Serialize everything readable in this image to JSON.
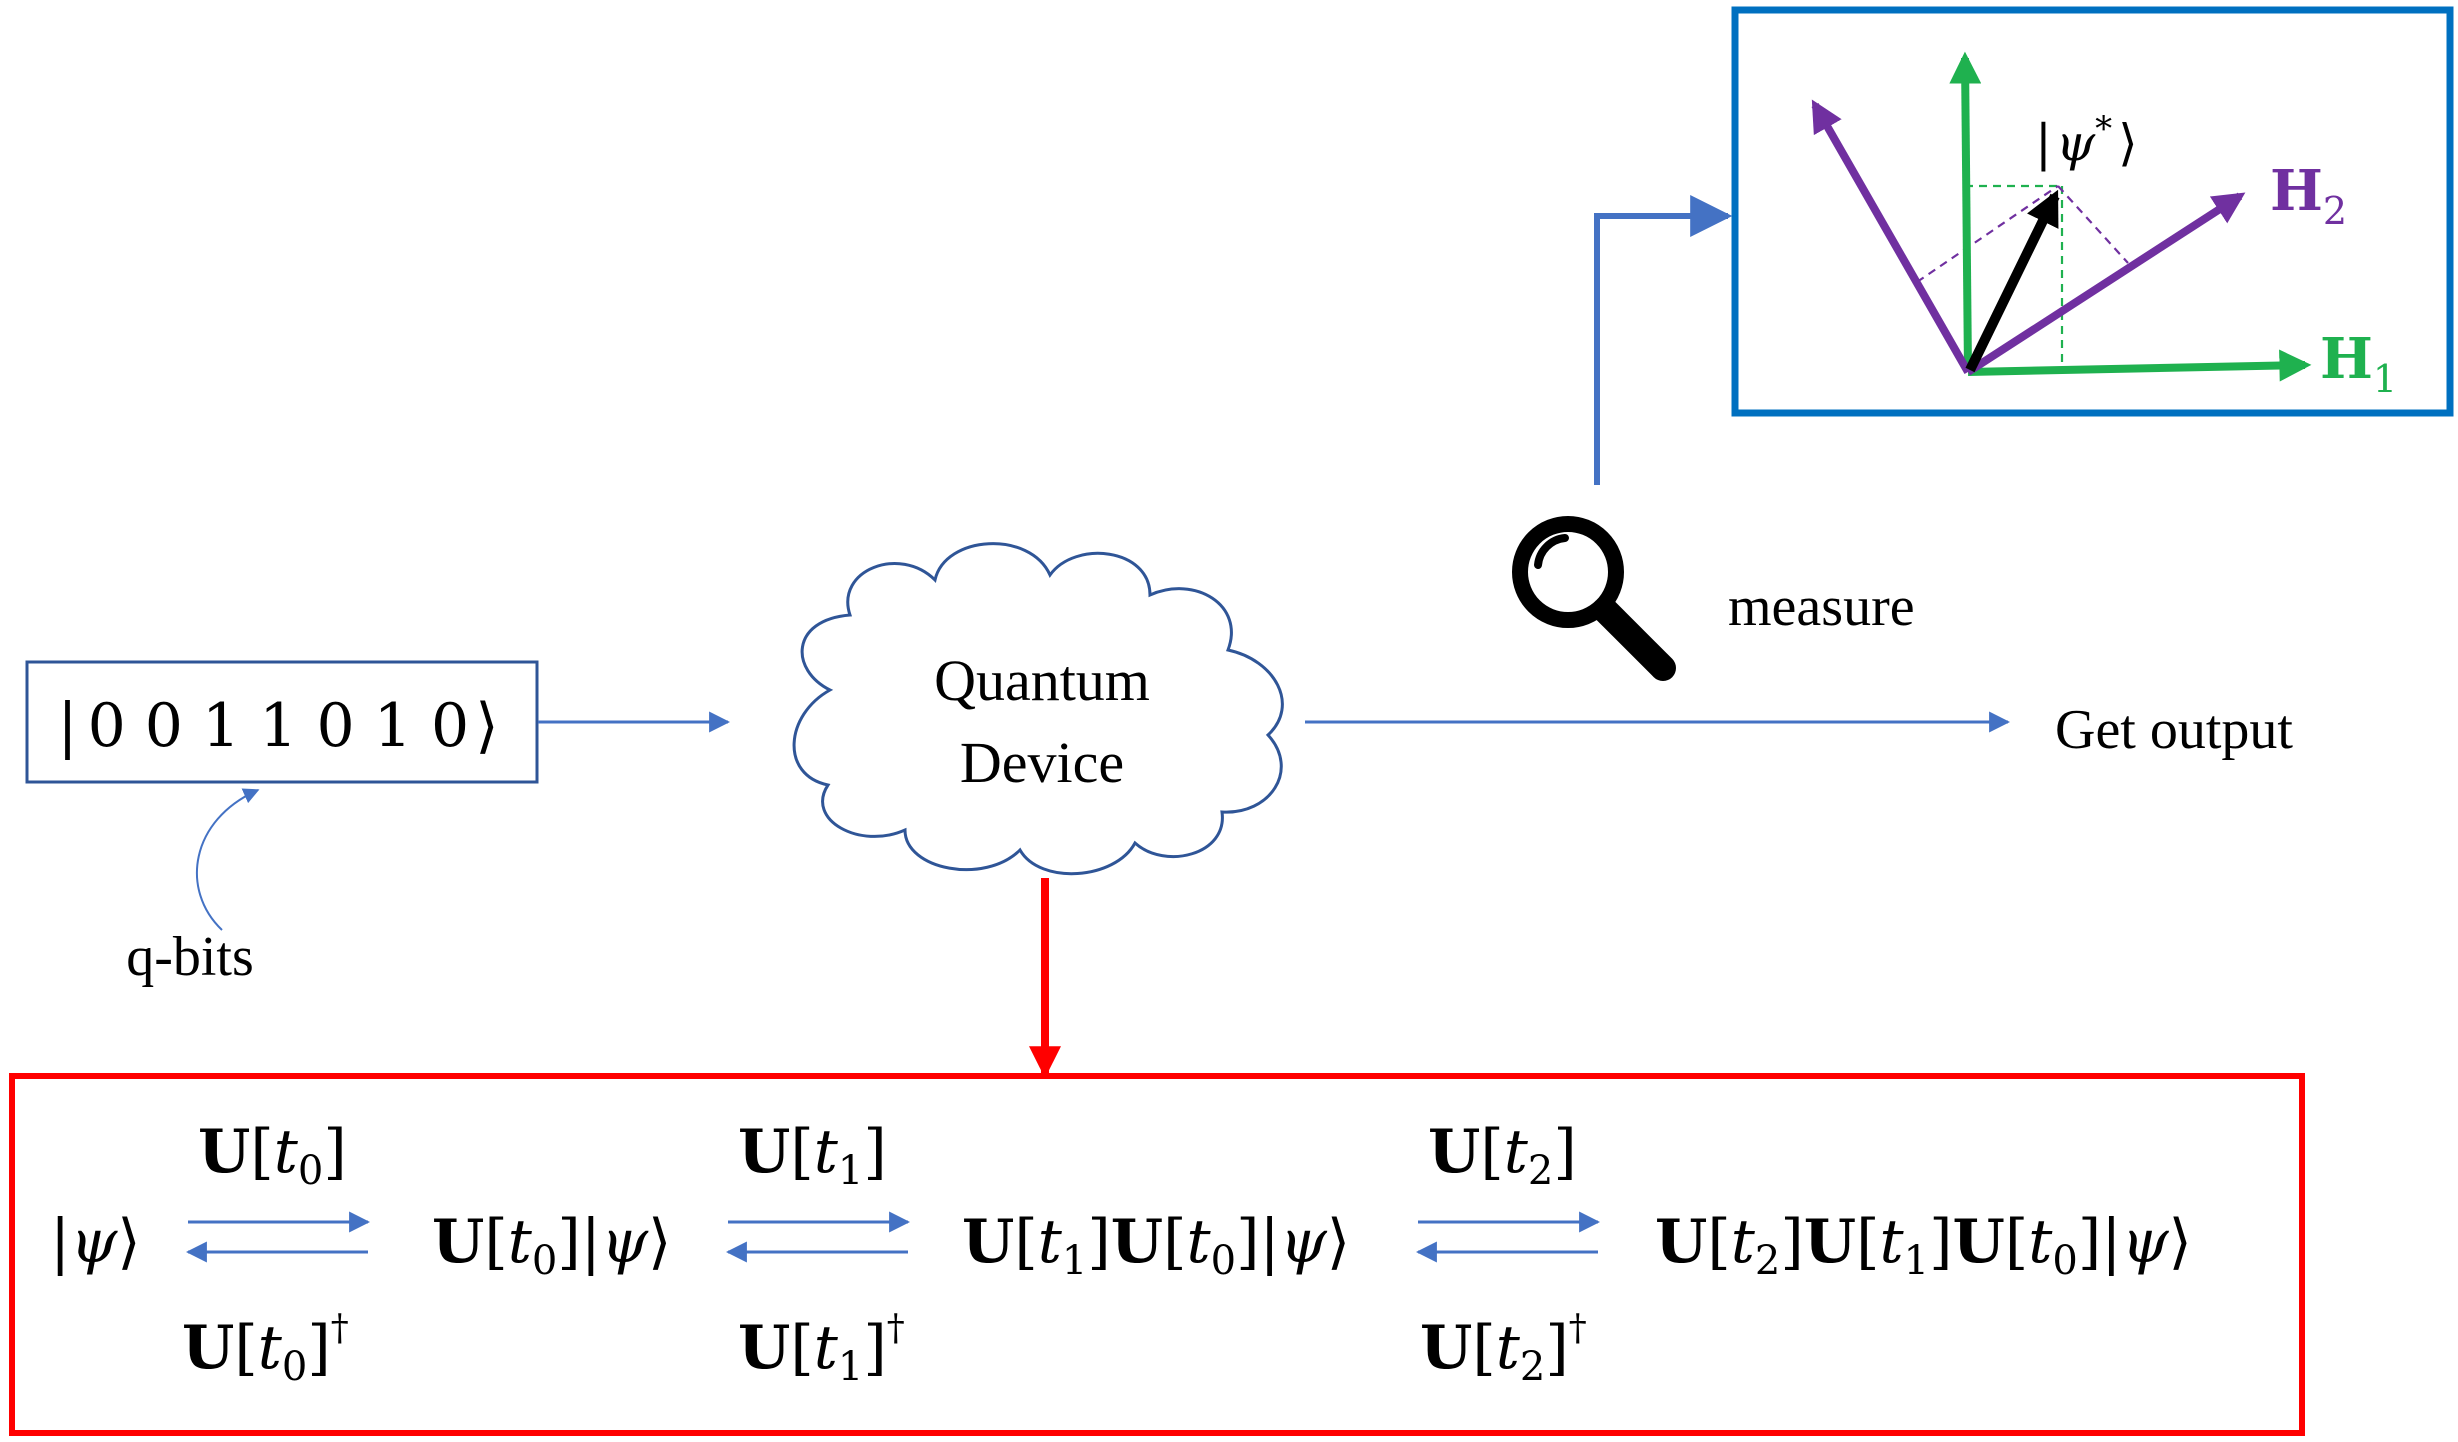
{
  "input": {
    "ket_open": "|",
    "bits": "0 0 1 1 0 1 0",
    "ket_close": "⟩",
    "caption": "q-bits"
  },
  "device": {
    "line1": "Quantum",
    "line2": "Device"
  },
  "measure": {
    "label": "measure",
    "icon": "magnifier-icon"
  },
  "output": {
    "label": "Get output"
  },
  "inset": {
    "state": {
      "open": "|",
      "psi": "ψ",
      "star": "*",
      "close": "⟩"
    },
    "h1": {
      "letter": "H",
      "sub": "1"
    },
    "h2": {
      "letter": "H",
      "sub": "2"
    },
    "colors": {
      "h1": "#1fb14f",
      "h2": "#7030a0",
      "state": "#000000",
      "frame": "#0070c0"
    }
  },
  "evolution": {
    "U": "U",
    "t": "t",
    "psi": "ψ",
    "dagger": "†",
    "t0": "0",
    "t1": "1",
    "t2": "2"
  },
  "colors": {
    "flow": "#4472c4",
    "evolution_frame": "#ff0000",
    "down_arrow": "#ff0000"
  }
}
